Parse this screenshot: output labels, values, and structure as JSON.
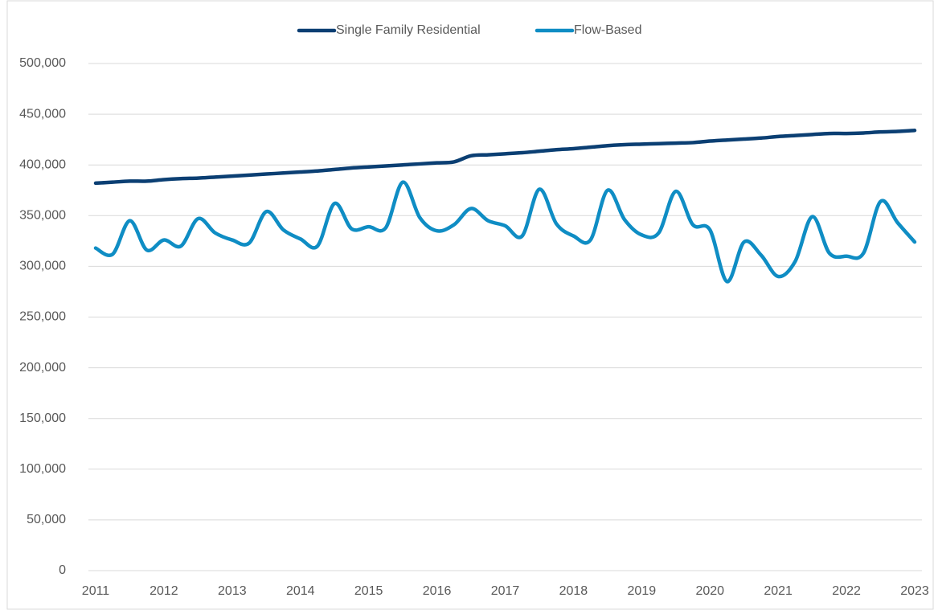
{
  "chart_data": {
    "type": "line",
    "x": [
      2011,
      2011.25,
      2011.5,
      2011.75,
      2012,
      2012.25,
      2012.5,
      2012.75,
      2013,
      2013.25,
      2013.5,
      2013.75,
      2014,
      2014.25,
      2014.5,
      2014.75,
      2015,
      2015.25,
      2015.5,
      2015.75,
      2016,
      2016.25,
      2016.5,
      2016.75,
      2017,
      2017.25,
      2017.5,
      2017.75,
      2018,
      2018.25,
      2018.5,
      2018.75,
      2019,
      2019.25,
      2019.5,
      2019.75,
      2020,
      2020.25,
      2020.5,
      2020.75,
      2021,
      2021.25,
      2021.5,
      2021.75,
      2022,
      2022.25,
      2022.5,
      2022.75,
      2023
    ],
    "series": [
      {
        "name": "Single Family Residential",
        "color": "#0b3f73",
        "values": [
          382000,
          383000,
          384000,
          384000,
          385500,
          386500,
          387000,
          388000,
          389000,
          390000,
          391000,
          392000,
          393000,
          394000,
          395500,
          397000,
          398000,
          399000,
          400000,
          401000,
          402000,
          403000,
          409000,
          410000,
          411000,
          412000,
          413500,
          415000,
          416000,
          417500,
          419000,
          420000,
          420500,
          421000,
          421500,
          422000,
          423500,
          424500,
          425500,
          426500,
          428000,
          429000,
          430000,
          431000,
          431000,
          431500,
          432500,
          433000,
          434000
        ]
      },
      {
        "name": "Flow-Based",
        "color": "#0f8dc4",
        "values": [
          318000,
          312000,
          345000,
          316000,
          326000,
          320000,
          347000,
          333000,
          326000,
          323000,
          354000,
          336000,
          327000,
          320000,
          362000,
          337000,
          339000,
          338000,
          383000,
          348000,
          335000,
          341000,
          357000,
          345000,
          340000,
          330000,
          376000,
          342000,
          330000,
          326000,
          375000,
          346000,
          331000,
          333000,
          374000,
          341000,
          336000,
          285000,
          324000,
          311000,
          290000,
          305000,
          349000,
          313000,
          310000,
          313000,
          364000,
          343000,
          324000
        ]
      }
    ],
    "xlim": [
      2011,
      2023
    ],
    "xticks": [
      2011,
      2012,
      2013,
      2014,
      2015,
      2016,
      2017,
      2018,
      2019,
      2020,
      2021,
      2022,
      2023
    ],
    "ylim": [
      0,
      500000
    ],
    "yticks": [
      0,
      {
        "value": 50000,
        "label": "50,000"
      },
      {
        "value": 100000,
        "label": "100,000"
      },
      {
        "value": 150000,
        "label": "150,000"
      },
      {
        "value": 200000,
        "label": "200,000"
      },
      {
        "value": 250000,
        "label": "250,000"
      },
      {
        "value": 300000,
        "label": "300,000"
      },
      {
        "value": 350000,
        "label": "350,000"
      },
      {
        "value": 400000,
        "label": "400,000"
      },
      {
        "value": 450000,
        "label": "450,000"
      },
      {
        "value": 500000,
        "label": "500,000"
      }
    ],
    "grid": true,
    "legend": "top"
  }
}
